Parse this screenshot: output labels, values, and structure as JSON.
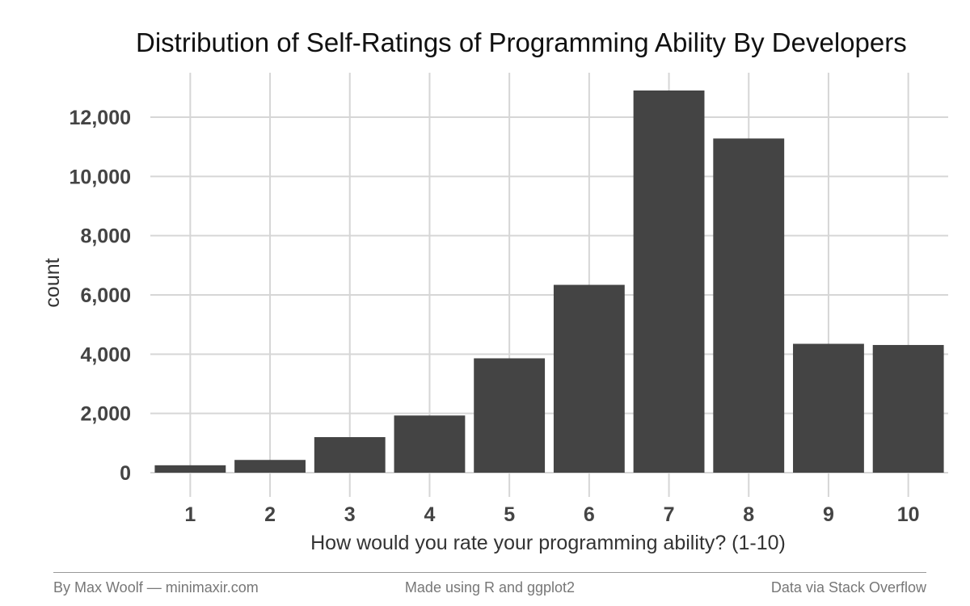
{
  "chart_data": {
    "type": "bar",
    "title": "Distribution of Self-Ratings of Programming Ability By Developers",
    "xlabel": "How would you rate your programming ability? (1-10)",
    "ylabel": "count",
    "categories": [
      "1",
      "2",
      "3",
      "4",
      "5",
      "6",
      "7",
      "8",
      "9",
      "10"
    ],
    "values": [
      250,
      430,
      1200,
      1930,
      3860,
      6340,
      12900,
      11280,
      4350,
      4310
    ],
    "ylim": [
      0,
      13000
    ],
    "yticks": [
      0,
      2000,
      4000,
      6000,
      8000,
      10000,
      12000
    ],
    "ytick_labels": [
      "0",
      "2,000",
      "4,000",
      "6,000",
      "8,000",
      "10,000",
      "12,000"
    ],
    "grid": true,
    "bar_color": "#444444",
    "grid_color": "#d6d6d6"
  },
  "footer": {
    "left": "By Max Woolf — minimaxir.com",
    "center": "Made using R and ggplot2",
    "right": "Data via Stack Overflow"
  }
}
